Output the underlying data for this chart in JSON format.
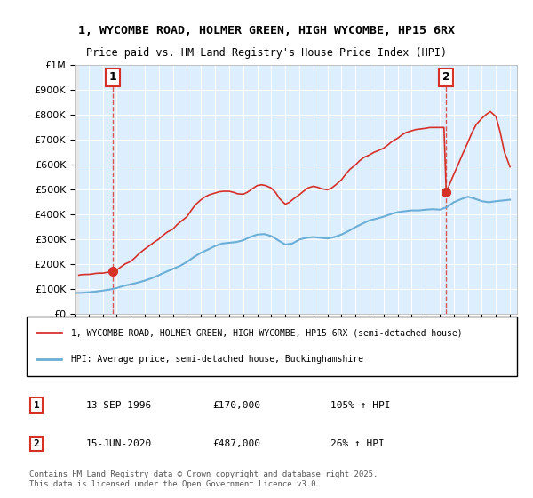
{
  "title_line1": "1, WYCOMBE ROAD, HOLMER GREEN, HIGH WYCOMBE, HP15 6RX",
  "title_line2": "Price paid vs. HM Land Registry's House Price Index (HPI)",
  "ylabel": "",
  "xlabel": "",
  "ylim": [
    0,
    1000000
  ],
  "xlim_start": 1994.0,
  "xlim_end": 2025.5,
  "yticks": [
    0,
    100000,
    200000,
    300000,
    400000,
    500000,
    600000,
    700000,
    800000,
    900000,
    1000000
  ],
  "ytick_labels": [
    "£0",
    "£100K",
    "£200K",
    "£300K",
    "£400K",
    "£500K",
    "£600K",
    "£700K",
    "£800K",
    "£900K",
    "£1M"
  ],
  "hpi_color": "#6baed6",
  "price_color": "#d73027",
  "purchase_color": "#d73027",
  "marker_color": "#d73027",
  "bg_hatch_color": "#cccccc",
  "bg_plot_color": "#ddeeff",
  "sale1_x": 1996.71,
  "sale1_y": 170000,
  "sale1_label": "1",
  "sale2_x": 2020.46,
  "sale2_y": 487000,
  "sale2_label": "2",
  "legend_entry1": "1, WYCOMBE ROAD, HOLMER GREEN, HIGH WYCOMBE, HP15 6RX (semi-detached house)",
  "legend_entry2": "HPI: Average price, semi-detached house, Buckinghamshire",
  "table_row1": "1    13-SEP-1996    £170,000    105% ↑ HPI",
  "table_row2": "2    15-JUN-2020    £487,000    26% ↑ HPI",
  "footnote": "Contains HM Land Registry data © Crown copyright and database right 2025.\nThis data is licensed under the Open Government Licence v3.0.",
  "hpi_x": [
    1994.0,
    1994.5,
    1995.0,
    1995.5,
    1996.0,
    1996.5,
    1997.0,
    1997.5,
    1998.0,
    1998.5,
    1999.0,
    1999.5,
    2000.0,
    2000.5,
    2001.0,
    2001.5,
    2002.0,
    2002.5,
    2003.0,
    2003.5,
    2004.0,
    2004.5,
    2005.0,
    2005.5,
    2006.0,
    2006.5,
    2007.0,
    2007.5,
    2008.0,
    2008.5,
    2009.0,
    2009.5,
    2010.0,
    2010.5,
    2011.0,
    2011.5,
    2012.0,
    2012.5,
    2013.0,
    2013.5,
    2014.0,
    2014.5,
    2015.0,
    2015.5,
    2016.0,
    2016.5,
    2017.0,
    2017.5,
    2018.0,
    2018.5,
    2019.0,
    2019.5,
    2020.0,
    2020.5,
    2021.0,
    2021.5,
    2022.0,
    2022.5,
    2023.0,
    2023.5,
    2024.0,
    2024.5,
    2025.0
  ],
  "hpi_y": [
    83000,
    84000,
    86000,
    89000,
    93000,
    97000,
    103000,
    112000,
    118000,
    125000,
    133000,
    143000,
    155000,
    168000,
    180000,
    192000,
    208000,
    228000,
    245000,
    258000,
    272000,
    282000,
    285000,
    288000,
    295000,
    308000,
    318000,
    320000,
    312000,
    295000,
    278000,
    282000,
    298000,
    305000,
    308000,
    305000,
    302000,
    308000,
    318000,
    332000,
    348000,
    362000,
    375000,
    382000,
    390000,
    400000,
    408000,
    412000,
    415000,
    415000,
    418000,
    420000,
    418000,
    428000,
    448000,
    460000,
    470000,
    462000,
    452000,
    448000,
    452000,
    455000,
    458000
  ],
  "price_x": [
    1994.3,
    1994.5,
    1994.8,
    1995.0,
    1995.3,
    1995.5,
    1995.8,
    1996.0,
    1996.2,
    1996.5,
    1996.71,
    1997.0,
    1997.3,
    1997.6,
    1998.0,
    1998.3,
    1998.6,
    1999.0,
    1999.3,
    1999.6,
    2000.0,
    2000.3,
    2000.6,
    2001.0,
    2001.3,
    2001.6,
    2002.0,
    2002.3,
    2002.6,
    2003.0,
    2003.3,
    2003.6,
    2004.0,
    2004.3,
    2004.6,
    2005.0,
    2005.3,
    2005.6,
    2006.0,
    2006.3,
    2006.6,
    2007.0,
    2007.3,
    2007.6,
    2008.0,
    2008.3,
    2008.6,
    2009.0,
    2009.3,
    2009.6,
    2010.0,
    2010.3,
    2010.6,
    2011.0,
    2011.3,
    2011.6,
    2012.0,
    2012.3,
    2012.6,
    2013.0,
    2013.3,
    2013.6,
    2014.0,
    2014.3,
    2014.6,
    2015.0,
    2015.3,
    2015.6,
    2016.0,
    2016.3,
    2016.6,
    2017.0,
    2017.3,
    2017.6,
    2018.0,
    2018.3,
    2018.6,
    2019.0,
    2019.3,
    2019.6,
    2020.0,
    2020.3,
    2020.46,
    2020.7,
    2021.0,
    2021.3,
    2021.6,
    2022.0,
    2022.3,
    2022.6,
    2023.0,
    2023.3,
    2023.6,
    2024.0,
    2024.3,
    2024.6,
    2025.0
  ],
  "price_y": [
    155000,
    157000,
    158000,
    158000,
    160000,
    162000,
    163000,
    163000,
    165000,
    167000,
    170000,
    176000,
    188000,
    200000,
    210000,
    225000,
    242000,
    260000,
    272000,
    285000,
    300000,
    315000,
    328000,
    340000,
    358000,
    372000,
    390000,
    415000,
    438000,
    458000,
    470000,
    478000,
    485000,
    490000,
    492000,
    492000,
    488000,
    482000,
    480000,
    488000,
    500000,
    515000,
    518000,
    515000,
    505000,
    488000,
    462000,
    440000,
    448000,
    462000,
    478000,
    492000,
    505000,
    512000,
    508000,
    502000,
    498000,
    505000,
    518000,
    538000,
    560000,
    580000,
    598000,
    615000,
    628000,
    638000,
    648000,
    655000,
    665000,
    678000,
    692000,
    705000,
    718000,
    728000,
    735000,
    740000,
    742000,
    745000,
    748000,
    748000,
    748000,
    748000,
    487000,
    520000,
    560000,
    598000,
    638000,
    688000,
    728000,
    760000,
    785000,
    800000,
    812000,
    792000,
    730000,
    650000,
    590000
  ]
}
